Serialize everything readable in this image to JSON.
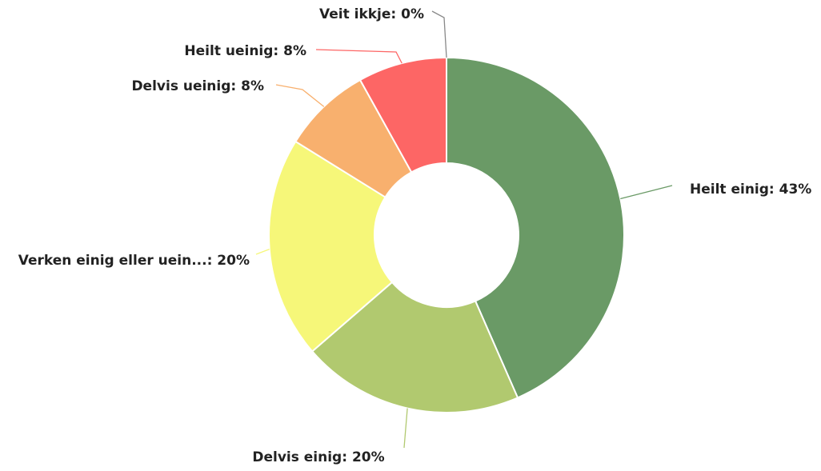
{
  "chart_data": {
    "type": "donut",
    "values": [
      43,
      20,
      20,
      8,
      8,
      0
    ],
    "value_labels": [
      "Heilt einig: 43%",
      "Delvis einig: 20%",
      "Verken einig eller uein...: 20%",
      "Delvis ueinig: 8%",
      "Heilt ueinig: 8%",
      "Veit ikkje: 0%"
    ],
    "colors": [
      "#6a9a66",
      "#b1c96f",
      "#f6f779",
      "#f8b06e",
      "#fd6665",
      "#888888"
    ]
  }
}
